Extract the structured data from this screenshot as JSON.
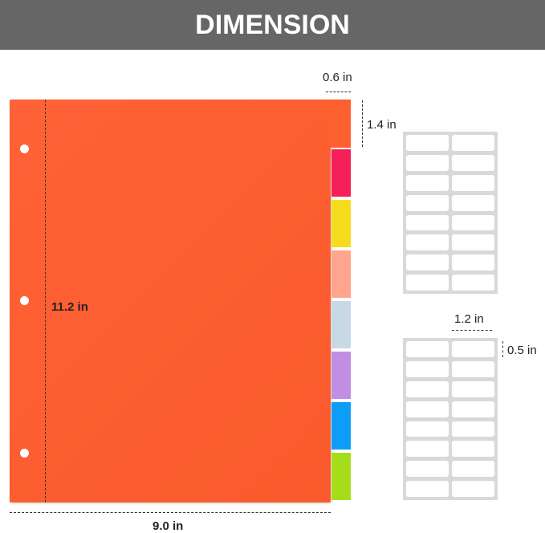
{
  "title": "DIMENSION",
  "dimensions": {
    "tab_width": "0.6 in",
    "tab_height": "1.4 in",
    "height": "11.2 in",
    "width": "9.0 in",
    "label_width": "1.2 in",
    "label_height": "0.5 in"
  },
  "tab_colors": [
    "#f5205a",
    "#f7dc1e",
    "#ffa58d",
    "#c8d9e6",
    "#c08ee3",
    "#0d9df7",
    "#a6dd1b"
  ],
  "body_color": "#fd5f2e",
  "label_sheets": [
    {
      "rows": 8,
      "cols": 2
    },
    {
      "rows": 8,
      "cols": 2
    }
  ]
}
